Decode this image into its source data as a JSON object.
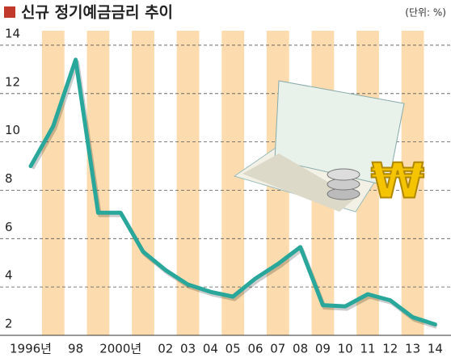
{
  "chart_data": {
    "type": "line",
    "title": "신규 정기예금금리 추이",
    "unit": "(단위: %)",
    "categories": [
      "1996년",
      null,
      "98",
      null,
      "2000년",
      null,
      "02",
      "03",
      "04",
      "05",
      "06",
      "07",
      "08",
      "09",
      "10",
      "11",
      "12",
      "13",
      "14"
    ],
    "values": [
      9.0,
      10.65,
      13.4,
      7.07,
      7.07,
      5.46,
      4.7,
      4.1,
      3.8,
      3.6,
      4.35,
      4.95,
      5.65,
      3.25,
      3.2,
      3.7,
      3.45,
      2.75,
      2.45
    ],
    "color": "#2aa79b",
    "ylim": [
      2,
      14.6
    ],
    "yticks": [
      2,
      4,
      6,
      8,
      10,
      12,
      14
    ],
    "grid": true
  }
}
